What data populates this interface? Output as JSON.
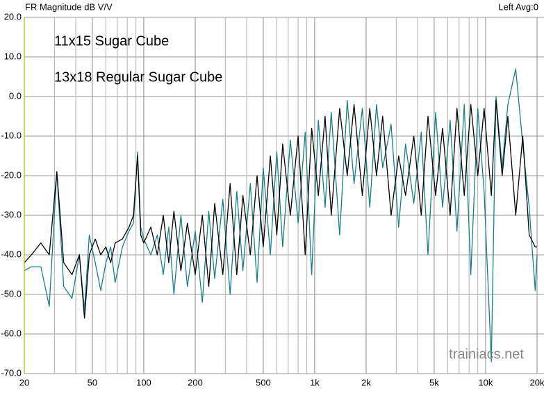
{
  "chart_data": {
    "type": "line",
    "title": "FR Magnitude dB V/V",
    "subtitle": "Left  Avg:0",
    "annotations": [
      "11x15 Sugar Cube",
      "13x18 Regular Sugar Cube",
      "trainiacs.net"
    ],
    "log_x": true,
    "grid": true,
    "x": [
      20,
      22,
      25,
      28,
      31,
      34,
      38,
      42,
      45,
      48,
      52,
      56,
      60,
      64,
      68,
      75,
      82,
      87,
      92,
      96,
      100,
      110,
      120,
      130,
      140,
      150,
      165,
      180,
      200,
      220,
      240,
      260,
      290,
      320,
      350,
      380,
      420,
      460,
      500,
      550,
      600,
      650,
      720,
      800,
      880,
      960,
      1050,
      1150,
      1250,
      1400,
      1550,
      1700,
      1900,
      2100,
      2300,
      2500,
      2800,
      3100,
      3400,
      3800,
      4200,
      4600,
      5100,
      5600,
      6200,
      6800,
      7500,
      8200,
      9000,
      9800,
      10800,
      11500,
      12500,
      13500,
      15000,
      16500,
      18000,
      19500,
      20000
    ],
    "series": [
      {
        "name": "11x15 Sugar Cube",
        "color": "#16808a",
        "values": [
          -44,
          -43,
          -43,
          -53,
          -19,
          -48,
          -51,
          -40,
          -54,
          -35,
          -42,
          -49,
          -42,
          -38,
          -47,
          -38,
          -34,
          -32,
          -14,
          -33,
          -36,
          -40,
          -35,
          -45,
          -33,
          -50,
          -30,
          -48,
          -34,
          -52,
          -29,
          -46,
          -26,
          -50,
          -24,
          -44,
          -22,
          -47,
          -18,
          -40,
          -14,
          -38,
          -11,
          -32,
          -9,
          -45,
          -6,
          -28,
          -4,
          -35,
          -1,
          -22,
          -3,
          -28,
          -2,
          -18,
          -7,
          -33,
          -12,
          -27,
          -9,
          -40,
          -4,
          -28,
          -6,
          -34,
          -2,
          -45,
          -3,
          -24,
          -67,
          0,
          -18,
          -2,
          7,
          -12,
          -28,
          -49,
          -40
        ]
      },
      {
        "name": "13x18 Regular Sugar Cube",
        "color": "#000000",
        "values": [
          -42,
          -40,
          -37,
          -40,
          -19,
          -42,
          -45,
          -40,
          -56,
          -40,
          -36,
          -40,
          -38,
          -42,
          -37,
          -36,
          -33,
          -30,
          -15,
          -35,
          -37,
          -33,
          -40,
          -30,
          -42,
          -29,
          -44,
          -32,
          -45,
          -30,
          -48,
          -27,
          -45,
          -22,
          -45,
          -25,
          -40,
          -20,
          -38,
          -15,
          -35,
          -12,
          -30,
          -10,
          -40,
          -8,
          -25,
          -5,
          -30,
          -3,
          -20,
          -2,
          -25,
          -3,
          -20,
          -5,
          -30,
          -15,
          -25,
          -10,
          -30,
          -5,
          -25,
          -8,
          -30,
          -3,
          -25,
          -2,
          -20,
          -3,
          -25,
          -1,
          -20,
          -5,
          -30,
          -10,
          -35,
          -38,
          -38
        ]
      }
    ],
    "xlim": [
      20,
      20000
    ],
    "xticks": [
      20,
      50,
      100,
      200,
      500,
      {
        "value": 1000,
        "label": "1k"
      },
      {
        "value": 2000,
        "label": "2k"
      },
      {
        "value": 5000,
        "label": "5k"
      },
      {
        "value": 10000,
        "label": "10k"
      },
      {
        "value": 20000,
        "label": "20k"
      }
    ],
    "xminorticks": [
      30,
      40,
      60,
      70,
      80,
      90,
      300,
      400,
      600,
      700,
      800,
      900,
      3000,
      4000,
      6000,
      7000,
      8000,
      9000
    ],
    "ylim": [
      -70,
      20
    ],
    "yticks": [
      {
        "value": 20,
        "label": "20.0"
      },
      {
        "value": 10,
        "label": "10.0"
      },
      {
        "value": 0,
        "label": "0.0"
      },
      {
        "value": -10,
        "label": "-10.0"
      },
      {
        "value": -20,
        "label": "-20.0"
      },
      {
        "value": -30,
        "label": "-30.0"
      },
      {
        "value": -40,
        "label": "-40.0"
      },
      {
        "value": -50,
        "label": "-50.0"
      },
      {
        "value": -60,
        "label": "-60.0"
      },
      {
        "value": -70,
        "label": "-70.0"
      }
    ]
  }
}
